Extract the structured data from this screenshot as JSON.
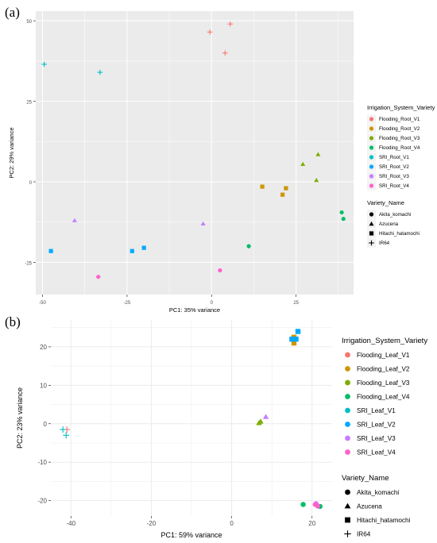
{
  "panels": [
    {
      "label": "(a)",
      "chart_data": {
        "type": "scatter",
        "title": "",
        "xlabel": "PC1: 35% variance",
        "ylabel": "PC2: 29% variance",
        "xlim": [
          -52,
          42
        ],
        "ylim": [
          -35,
          53
        ],
        "xticks": [
          -50,
          -25,
          0,
          25
        ],
        "yticks": [
          -25,
          0,
          25,
          50
        ],
        "grid": true,
        "legend_placement": "right",
        "color_legend": {
          "title": "Irrigation_System_Variety",
          "entries": [
            {
              "name": "Flooding_Root_V1",
              "color": "#F8766D"
            },
            {
              "name": "Flooding_Root_V2",
              "color": "#CD9600"
            },
            {
              "name": "Flooding_Root_V3",
              "color": "#7CAE00"
            },
            {
              "name": "Flooding_Root_V4",
              "color": "#00BE67"
            },
            {
              "name": "SRI_Root_V1",
              "color": "#00BFC4"
            },
            {
              "name": "SRI_Root_V2",
              "color": "#00A9FF"
            },
            {
              "name": "SRI_Root_V3",
              "color": "#C77CFF"
            },
            {
              "name": "SRI_Root_V4",
              "color": "#FF61CC"
            }
          ]
        },
        "shape_legend": {
          "title": "Variety_Name",
          "entries": [
            {
              "name": "Akita_komachi",
              "shape": "circle"
            },
            {
              "name": "Azucena",
              "shape": "triangle"
            },
            {
              "name": "Hitachi_hatamochi",
              "shape": "square"
            },
            {
              "name": "IR64",
              "shape": "plus"
            }
          ]
        },
        "points": [
          {
            "x": -0.5,
            "y": 46.5,
            "group": 0,
            "shape": "plus"
          },
          {
            "x": 5.5,
            "y": 49,
            "group": 0,
            "shape": "plus"
          },
          {
            "x": 4,
            "y": 40,
            "group": 0,
            "shape": "plus"
          },
          {
            "x": 15,
            "y": -1.5,
            "group": 1,
            "shape": "square"
          },
          {
            "x": 22,
            "y": -2,
            "group": 1,
            "shape": "square"
          },
          {
            "x": 21,
            "y": -4,
            "group": 1,
            "shape": "square"
          },
          {
            "x": 27,
            "y": 5.5,
            "group": 2,
            "shape": "triangle"
          },
          {
            "x": 31.5,
            "y": 8.5,
            "group": 2,
            "shape": "triangle"
          },
          {
            "x": 31,
            "y": 0.5,
            "group": 2,
            "shape": "triangle"
          },
          {
            "x": 38.5,
            "y": -9.5,
            "group": 3,
            "shape": "circle"
          },
          {
            "x": 39,
            "y": -11.5,
            "group": 3,
            "shape": "circle"
          },
          {
            "x": 11,
            "y": -20,
            "group": 3,
            "shape": "circle"
          },
          {
            "x": -49.5,
            "y": 36.5,
            "group": 4,
            "shape": "plus"
          },
          {
            "x": -33,
            "y": 34,
            "group": 4,
            "shape": "plus"
          },
          {
            "x": -47.5,
            "y": -21.5,
            "group": 5,
            "shape": "square"
          },
          {
            "x": -23.5,
            "y": -21.5,
            "group": 5,
            "shape": "square"
          },
          {
            "x": -20,
            "y": -20.5,
            "group": 5,
            "shape": "square"
          },
          {
            "x": -40.5,
            "y": -12,
            "group": 6,
            "shape": "triangle"
          },
          {
            "x": -2.5,
            "y": -13,
            "group": 6,
            "shape": "triangle"
          },
          {
            "x": -33.5,
            "y": -29.5,
            "group": 7,
            "shape": "circle"
          },
          {
            "x": 2.5,
            "y": -27.5,
            "group": 7,
            "shape": "circle"
          }
        ]
      }
    },
    {
      "label": "(b)",
      "chart_data": {
        "type": "scatter",
        "title": "",
        "xlabel": "PC1: 59% variance",
        "ylabel": "PC2: 23% variance",
        "xlim": [
          -45,
          25
        ],
        "ylim": [
          -24,
          27
        ],
        "xticks": [
          -40,
          -20,
          0,
          20
        ],
        "yticks": [
          -20,
          -10,
          0,
          10,
          20
        ],
        "grid": true,
        "legend_placement": "right",
        "color_legend": {
          "title": "Irrigation_System_Variety",
          "entries": [
            {
              "name": "Flooding_Leaf_V1",
              "color": "#F8766D"
            },
            {
              "name": "Flooding_Leaf_V2",
              "color": "#CD9600"
            },
            {
              "name": "Flooding_Leaf_V3",
              "color": "#7CAE00"
            },
            {
              "name": "Flooding_Leaf_V4",
              "color": "#00BE67"
            },
            {
              "name": "SRI_Leaf_V1",
              "color": "#00BFC4"
            },
            {
              "name": "SRI_Leaf_V2",
              "color": "#00A9FF"
            },
            {
              "name": "SRI_Leaf_V3",
              "color": "#C77CFF"
            },
            {
              "name": "SRI_Leaf_V4",
              "color": "#FF61CC"
            }
          ]
        },
        "shape_legend": {
          "title": "Variety_Name",
          "entries": [
            {
              "name": "Akita_komachi",
              "shape": "circle"
            },
            {
              "name": "Azucena",
              "shape": "triangle"
            },
            {
              "name": "Hitachi_hatamochi",
              "shape": "square"
            },
            {
              "name": "IR64",
              "shape": "plus"
            }
          ]
        },
        "points": [
          {
            "x": -41,
            "y": -1.5,
            "group": 0,
            "shape": "plus"
          },
          {
            "x": 15.5,
            "y": 21,
            "group": 1,
            "shape": "square"
          },
          {
            "x": 15.5,
            "y": 22.5,
            "group": 1,
            "shape": "square"
          },
          {
            "x": 6.8,
            "y": 0.2,
            "group": 2,
            "shape": "triangle"
          },
          {
            "x": 7.2,
            "y": 0.6,
            "group": 2,
            "shape": "triangle"
          },
          {
            "x": 17.8,
            "y": -21,
            "group": 3,
            "shape": "circle"
          },
          {
            "x": 22,
            "y": -21.5,
            "group": 3,
            "shape": "circle"
          },
          {
            "x": -42,
            "y": -1.5,
            "group": 4,
            "shape": "plus"
          },
          {
            "x": -41.2,
            "y": -3,
            "group": 4,
            "shape": "plus"
          },
          {
            "x": 15,
            "y": 22,
            "group": 5,
            "shape": "square"
          },
          {
            "x": 16,
            "y": 22,
            "group": 5,
            "shape": "square"
          },
          {
            "x": 16.5,
            "y": 24,
            "group": 5,
            "shape": "square"
          },
          {
            "x": 8.5,
            "y": 1.8,
            "group": 6,
            "shape": "triangle"
          },
          {
            "x": 21,
            "y": -20.8,
            "group": 6,
            "shape": "circle"
          },
          {
            "x": 20.8,
            "y": -21,
            "group": 7,
            "shape": "circle"
          },
          {
            "x": 21.4,
            "y": -21.4,
            "group": 7,
            "shape": "circle"
          }
        ]
      }
    }
  ]
}
